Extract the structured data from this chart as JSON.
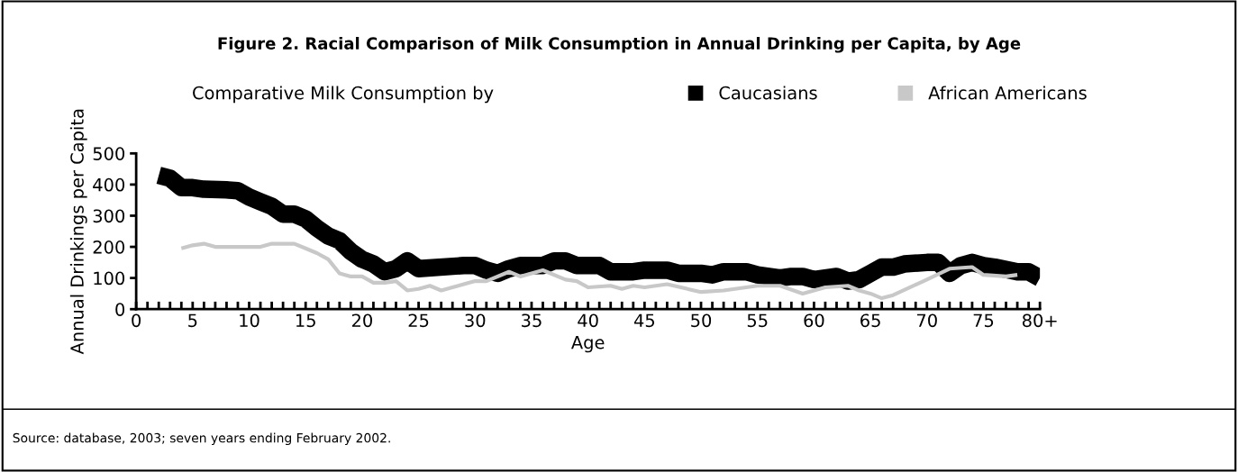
{
  "chart_data": {
    "type": "line",
    "title": "Figure 2. Racial Comparison of Milk Consumption in Annual Drinking per Capita, by Age",
    "xlabel": "Age",
    "ylabel": "Annual Drinkings per Capita",
    "legend_title": "Comparative Milk Consumption by",
    "legend": "top",
    "annotations": [
      "Source: database, 2003; seven years ending February 2002."
    ],
    "xlim": [
      0,
      80
    ],
    "ylim": [
      0,
      500
    ],
    "yticks": [
      0,
      100,
      200,
      300,
      400,
      500
    ],
    "xticks": [
      0,
      {
        "value": 1,
        "label": null
      },
      {
        "value": 2,
        "label": null
      },
      {
        "value": 3,
        "label": null
      },
      {
        "value": 4,
        "label": null
      },
      5,
      {
        "value": 6,
        "label": null
      },
      {
        "value": 7,
        "label": null
      },
      {
        "value": 8,
        "label": null
      },
      {
        "value": 9,
        "label": null
      },
      10,
      {
        "value": 11,
        "label": null
      },
      {
        "value": 12,
        "label": null
      },
      {
        "value": 13,
        "label": null
      },
      {
        "value": 14,
        "label": null
      },
      15,
      {
        "value": 16,
        "label": null
      },
      {
        "value": 17,
        "label": null
      },
      {
        "value": 18,
        "label": null
      },
      {
        "value": 19,
        "label": null
      },
      20,
      {
        "value": 21,
        "label": null
      },
      {
        "value": 22,
        "label": null
      },
      {
        "value": 23,
        "label": null
      },
      {
        "value": 24,
        "label": null
      },
      25,
      {
        "value": 26,
        "label": null
      },
      {
        "value": 27,
        "label": null
      },
      {
        "value": 28,
        "label": null
      },
      {
        "value": 29,
        "label": null
      },
      30,
      {
        "value": 31,
        "label": null
      },
      {
        "value": 32,
        "label": null
      },
      {
        "value": 33,
        "label": null
      },
      {
        "value": 34,
        "label": null
      },
      35,
      {
        "value": 36,
        "label": null
      },
      {
        "value": 37,
        "label": null
      },
      {
        "value": 38,
        "label": null
      },
      {
        "value": 39,
        "label": null
      },
      40,
      {
        "value": 41,
        "label": null
      },
      {
        "value": 42,
        "label": null
      },
      {
        "value": 43,
        "label": null
      },
      {
        "value": 44,
        "label": null
      },
      45,
      {
        "value": 46,
        "label": null
      },
      {
        "value": 47,
        "label": null
      },
      {
        "value": 48,
        "label": null
      },
      {
        "value": 49,
        "label": null
      },
      50,
      {
        "value": 51,
        "label": null
      },
      {
        "value": 52,
        "label": null
      },
      {
        "value": 53,
        "label": null
      },
      {
        "value": 54,
        "label": null
      },
      55,
      {
        "value": 56,
        "label": null
      },
      {
        "value": 57,
        "label": null
      },
      {
        "value": 58,
        "label": null
      },
      {
        "value": 59,
        "label": null
      },
      60,
      {
        "value": 61,
        "label": null
      },
      {
        "value": 62,
        "label": null
      },
      {
        "value": 63,
        "label": null
      },
      {
        "value": 64,
        "label": null
      },
      65,
      {
        "value": 66,
        "label": null
      },
      {
        "value": 67,
        "label": null
      },
      {
        "value": 68,
        "label": null
      },
      {
        "value": 69,
        "label": null
      },
      70,
      {
        "value": 71,
        "label": null
      },
      {
        "value": 72,
        "label": null
      },
      {
        "value": 73,
        "label": null
      },
      {
        "value": 74,
        "label": null
      },
      75,
      {
        "value": 76,
        "label": null
      },
      {
        "value": 77,
        "label": null
      },
      {
        "value": 78,
        "label": null
      },
      {
        "value": 79,
        "label": null
      },
      {
        "value": 80,
        "label": "80+"
      }
    ],
    "grid": false,
    "marker": "none",
    "line_style": "solid",
    "series": [
      {
        "name": "Caucasians",
        "color": "#000000",
        "x": [
          2,
          3,
          4,
          5,
          6,
          8,
          9,
          10,
          11,
          12,
          13,
          14,
          15,
          16,
          17,
          18,
          19,
          20,
          21,
          22,
          23,
          24,
          25,
          29,
          30,
          31,
          32,
          33,
          34,
          36,
          37,
          38,
          39,
          41,
          42,
          44,
          45,
          47,
          48,
          50,
          51,
          52,
          54,
          55,
          57,
          58,
          59,
          60,
          61,
          62,
          63,
          64,
          65,
          66,
          67,
          68,
          70,
          71,
          72,
          73,
          74,
          75,
          76,
          78,
          79,
          80
        ],
        "values": [
          430,
          420,
          390,
          390,
          385,
          383,
          380,
          360,
          345,
          330,
          305,
          305,
          290,
          260,
          235,
          220,
          185,
          160,
          145,
          120,
          130,
          155,
          130,
          140,
          140,
          125,
          115,
          130,
          140,
          140,
          155,
          155,
          140,
          140,
          120,
          120,
          125,
          125,
          115,
          115,
          110,
          120,
          120,
          110,
          100,
          105,
          105,
          95,
          100,
          105,
          90,
          95,
          115,
          135,
          135,
          145,
          150,
          150,
          115,
          140,
          150,
          140,
          135,
          120,
          120,
          100
        ]
      },
      {
        "name": "African Americans",
        "color": "#c8c8c8",
        "x": [
          4,
          5,
          6,
          7,
          11,
          12,
          14,
          15,
          16,
          17,
          18,
          19,
          20,
          21,
          22,
          23,
          24,
          25,
          26,
          27,
          28,
          29,
          30,
          31,
          33,
          34,
          36,
          38,
          39,
          40,
          42,
          43,
          44,
          45,
          47,
          50,
          52,
          53,
          55,
          57,
          59,
          61,
          63,
          64,
          65,
          66,
          67,
          70,
          72,
          74,
          75,
          77,
          78
        ],
        "values": [
          195,
          205,
          210,
          200,
          200,
          210,
          210,
          195,
          180,
          160,
          115,
          105,
          105,
          85,
          85,
          90,
          60,
          65,
          75,
          60,
          70,
          80,
          90,
          90,
          120,
          105,
          125,
          95,
          90,
          70,
          75,
          65,
          75,
          70,
          80,
          55,
          60,
          65,
          75,
          75,
          50,
          70,
          75,
          60,
          50,
          35,
          45,
          95,
          130,
          135,
          110,
          105,
          110
        ]
      }
    ]
  }
}
